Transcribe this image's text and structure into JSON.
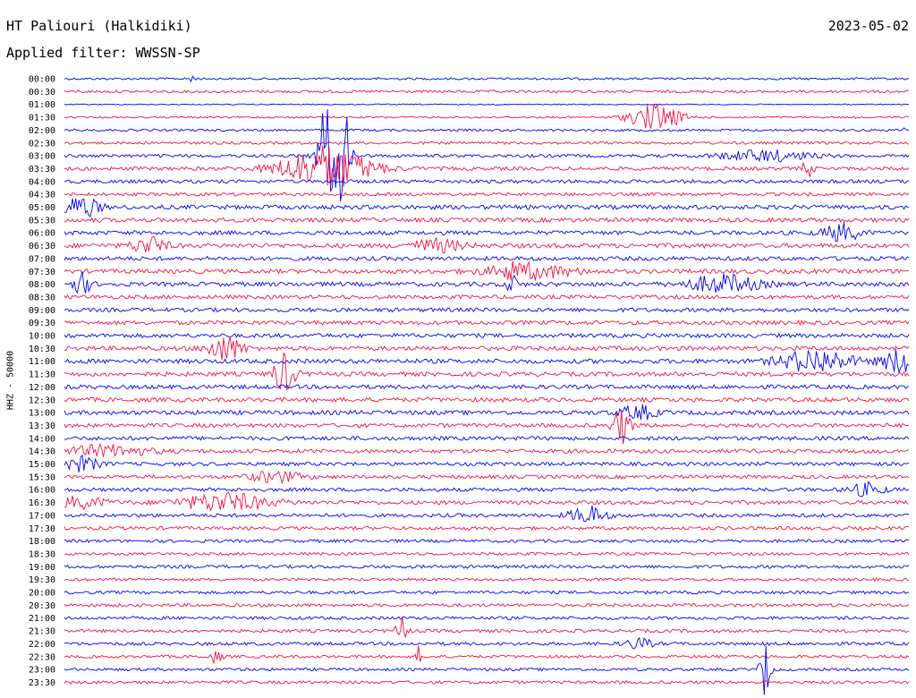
{
  "header": {
    "station": "HT Paliouri (Halkidiki)",
    "date": "2023-05-02",
    "filter": "Applied filter: WWSSN-SP"
  },
  "chart_data": {
    "type": "line",
    "title": "HT Paliouri (Halkidiki)",
    "ylabel": "HHZ - 50000",
    "xlabel": "",
    "rows": [
      "00:00",
      "00:30",
      "01:00",
      "01:30",
      "02:00",
      "02:30",
      "03:00",
      "03:30",
      "04:00",
      "04:30",
      "05:00",
      "05:30",
      "06:00",
      "06:30",
      "07:00",
      "07:30",
      "08:00",
      "08:30",
      "09:00",
      "09:30",
      "10:00",
      "10:30",
      "11:00",
      "11:30",
      "12:00",
      "12:30",
      "13:00",
      "13:30",
      "14:00",
      "14:30",
      "15:00",
      "15:30",
      "16:00",
      "16:30",
      "17:00",
      "17:30",
      "18:00",
      "18:30",
      "19:00",
      "19:30",
      "20:00",
      "20:30",
      "21:00",
      "21:30",
      "22:00",
      "22:30",
      "23:00",
      "23:30"
    ],
    "colors": {
      "even_rows": "#0000ee",
      "odd_rows": "#ee1144"
    },
    "noise_level": [
      1.2,
      1.5,
      0.6,
      1.0,
      1.3,
      1.5,
      1.8,
      2.0,
      2.0,
      1.8,
      2.4,
      2.4,
      2.3,
      2.5,
      2.3,
      2.4,
      2.4,
      2.2,
      2.2,
      2.3,
      2.3,
      2.4,
      2.5,
      2.4,
      2.3,
      2.4,
      2.4,
      2.2,
      2.2,
      2.2,
      2.0,
      2.0,
      2.0,
      2.2,
      2.0,
      1.9,
      1.7,
      1.6,
      1.8,
      1.6,
      1.7,
      1.8,
      1.8,
      1.8,
      1.8,
      1.6,
      1.6,
      1.7
    ],
    "events": [
      {
        "row": 0,
        "x": 0.15,
        "amp": 8,
        "dur": 0.003
      },
      {
        "row": 3,
        "x": 0.7,
        "amp": 15,
        "dur": 0.03
      },
      {
        "row": 4,
        "x": 0.998,
        "amp": 10,
        "dur": 0.004
      },
      {
        "row": 6,
        "x": 0.31,
        "amp": 60,
        "dur": 0.01
      },
      {
        "row": 6,
        "x": 0.33,
        "amp": 58,
        "dur": 0.008
      },
      {
        "row": 6,
        "x": 0.83,
        "amp": 6,
        "dur": 0.05
      },
      {
        "row": 7,
        "x": 0.31,
        "amp": 25,
        "dur": 0.05
      },
      {
        "row": 7,
        "x": 0.88,
        "amp": 10,
        "dur": 0.006
      },
      {
        "row": 10,
        "x": 0.02,
        "amp": 12,
        "dur": 0.02
      },
      {
        "row": 12,
        "x": 0.92,
        "amp": 10,
        "dur": 0.02
      },
      {
        "row": 13,
        "x": 0.1,
        "amp": 9,
        "dur": 0.02
      },
      {
        "row": 13,
        "x": 0.44,
        "amp": 7,
        "dur": 0.03
      },
      {
        "row": 15,
        "x": 0.53,
        "amp": 12,
        "dur": 0.004
      },
      {
        "row": 15,
        "x": 0.55,
        "amp": 8,
        "dur": 0.05
      },
      {
        "row": 16,
        "x": 0.02,
        "amp": 12,
        "dur": 0.01
      },
      {
        "row": 16,
        "x": 0.53,
        "amp": 14,
        "dur": 0.005
      },
      {
        "row": 16,
        "x": 0.78,
        "amp": 10,
        "dur": 0.04
      },
      {
        "row": 21,
        "x": 0.19,
        "amp": 14,
        "dur": 0.02
      },
      {
        "row": 22,
        "x": 0.89,
        "amp": 13,
        "dur": 0.04
      },
      {
        "row": 22,
        "x": 0.99,
        "amp": 14,
        "dur": 0.02
      },
      {
        "row": 23,
        "x": 0.26,
        "amp": 22,
        "dur": 0.012
      },
      {
        "row": 27,
        "x": 0.66,
        "amp": 20,
        "dur": 0.01
      },
      {
        "row": 26,
        "x": 0.68,
        "amp": 8,
        "dur": 0.02
      },
      {
        "row": 29,
        "x": 0.05,
        "amp": 6,
        "dur": 0.05
      },
      {
        "row": 30,
        "x": 0.02,
        "amp": 8,
        "dur": 0.02
      },
      {
        "row": 31,
        "x": 0.25,
        "amp": 6,
        "dur": 0.03
      },
      {
        "row": 32,
        "x": 0.95,
        "amp": 7,
        "dur": 0.02
      },
      {
        "row": 33,
        "x": 0.19,
        "amp": 10,
        "dur": 0.05
      },
      {
        "row": 33,
        "x": 0.02,
        "amp": 6,
        "dur": 0.03
      },
      {
        "row": 34,
        "x": 0.62,
        "amp": 10,
        "dur": 0.02
      },
      {
        "row": 43,
        "x": 0.4,
        "amp": 18,
        "dur": 0.006
      },
      {
        "row": 44,
        "x": 0.68,
        "amp": 6,
        "dur": 0.015
      },
      {
        "row": 45,
        "x": 0.18,
        "amp": 8,
        "dur": 0.006
      },
      {
        "row": 45,
        "x": 0.42,
        "amp": 12,
        "dur": 0.003
      },
      {
        "row": 46,
        "x": 0.83,
        "amp": 30,
        "dur": 0.006
      }
    ]
  }
}
